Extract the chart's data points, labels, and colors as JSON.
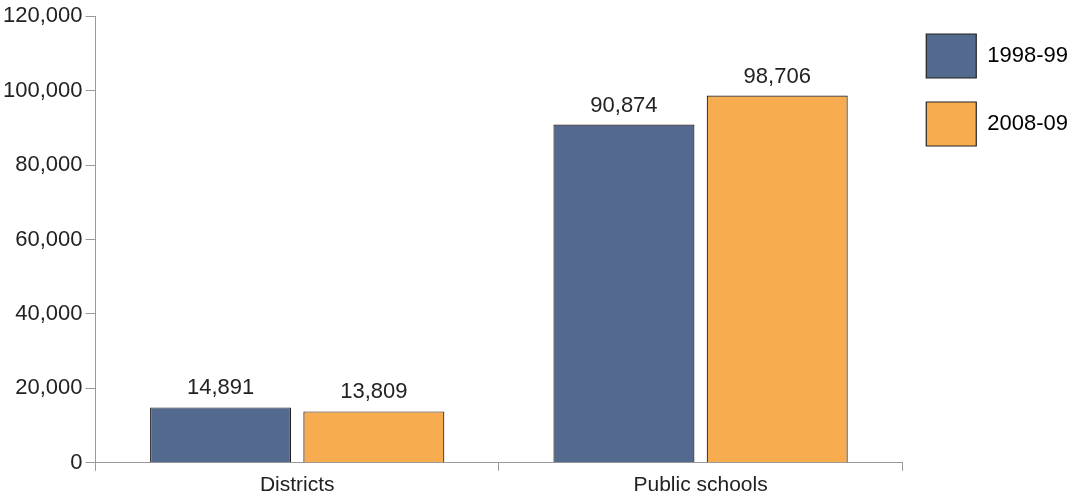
{
  "chart_data": {
    "type": "bar",
    "categories": [
      "Districts",
      "Public schools"
    ],
    "series": [
      {
        "name": "1998-99",
        "color": "#54698e",
        "values": [
          14891,
          90874
        ],
        "value_labels": [
          "14,891",
          "90,874"
        ]
      },
      {
        "name": "2008-09",
        "color": "#f7ac50",
        "values": [
          13809,
          98706
        ],
        "value_labels": [
          "13,809",
          "98,706"
        ]
      }
    ],
    "ylim": [
      0,
      120000
    ],
    "yticks": [
      0,
      {
        "value": 20000,
        "label": "20,000"
      },
      {
        "value": 40000,
        "label": "40,000"
      },
      {
        "value": 60000,
        "label": "60,000"
      },
      {
        "value": 80000,
        "label": "80,000"
      },
      {
        "value": 100000,
        "label": "100,000"
      },
      {
        "value": 120000,
        "label": "120,000"
      }
    ],
    "legend": "top right"
  }
}
